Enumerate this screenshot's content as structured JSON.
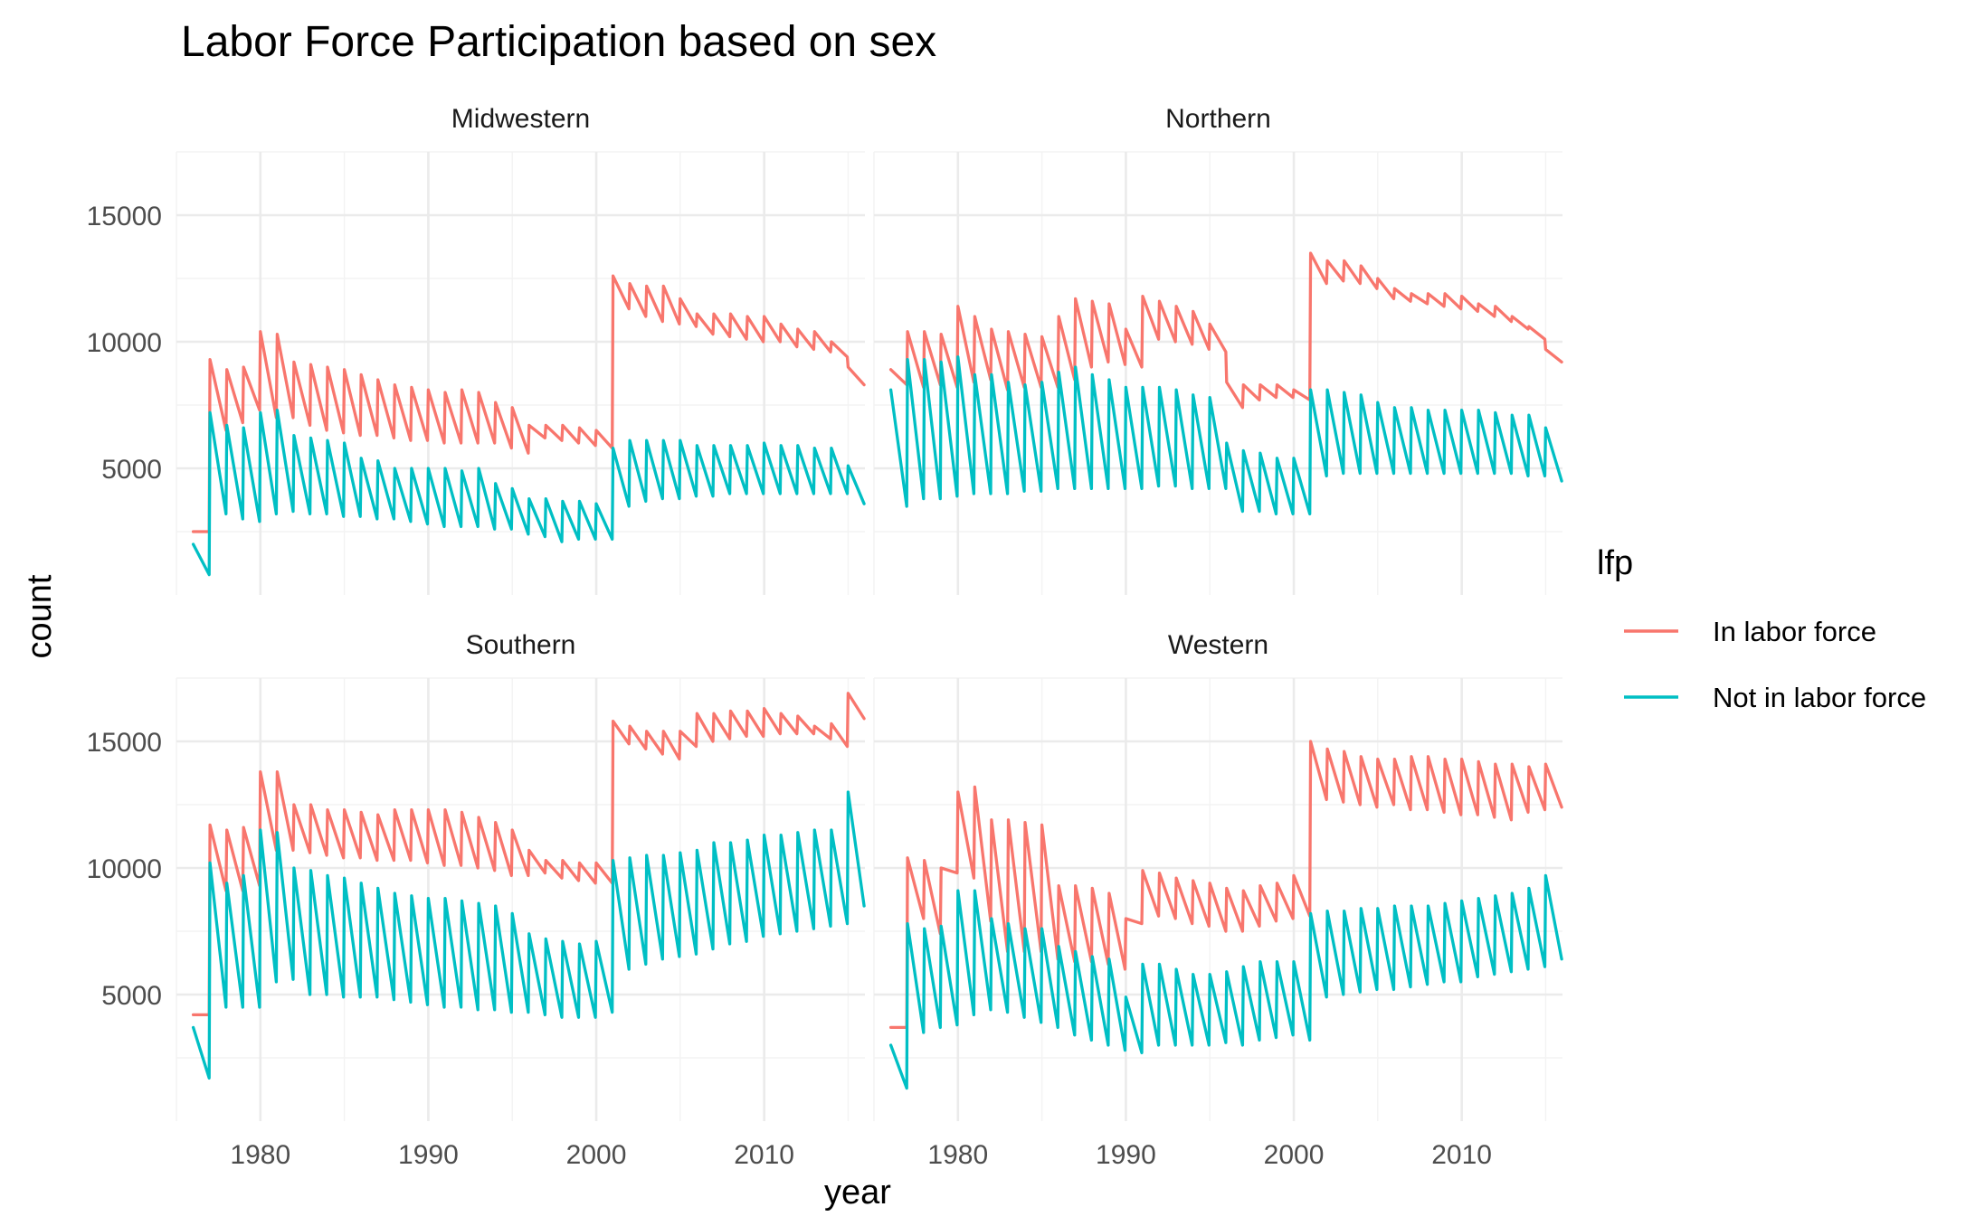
{
  "chart_data": {
    "type": "line",
    "title": "Labor Force Participation based on sex",
    "xlabel": "year",
    "ylabel": "count",
    "xlim": [
      1975,
      2016
    ],
    "ylim": [
      0,
      17500
    ],
    "x_ticks": [
      1980,
      1990,
      2000,
      2010
    ],
    "y_ticks": [
      5000,
      10000,
      15000
    ],
    "grid": true,
    "legend": {
      "title": "lfp",
      "position": "right",
      "entries": [
        {
          "label": "In labor force",
          "color": "#F8766D"
        },
        {
          "label": "Not in labor force",
          "color": "#00BFC4"
        }
      ]
    },
    "panels": [
      {
        "name": "Midwestern",
        "series": [
          {
            "name": "In labor force",
            "color": "#F8766D",
            "low": [
              2500,
              6500,
              6800,
              7300,
              7000,
              7000,
              6700,
              6500,
              6400,
              6300,
              6300,
              6200,
              6100,
              6100,
              6000,
              6000,
              6000,
              6000,
              5800,
              5600,
              6200,
              6100,
              6000,
              5900,
              5800,
              11300,
              11000,
              10800,
              10700,
              10600,
              10300,
              10200,
              10100,
              10000,
              10000,
              9800,
              9700,
              9600,
              9400,
              8300
            ],
            "high": [
              2500,
              9300,
              8900,
              9000,
              10400,
              10300,
              9200,
              9100,
              9000,
              8900,
              8700,
              8500,
              8300,
              8200,
              8100,
              8000,
              8100,
              8000,
              7600,
              7400,
              6700,
              6700,
              6700,
              6600,
              6500,
              12600,
              12300,
              12200,
              12200,
              11700,
              11100,
              11100,
              11100,
              11000,
              11000,
              10700,
              10500,
              10400,
              10000,
              9000
            ]
          },
          {
            "name": "Not in labor force",
            "color": "#00BFC4",
            "low": [
              800,
              3200,
              3000,
              2900,
              3200,
              3300,
              3200,
              3200,
              3100,
              3100,
              3000,
              3000,
              2900,
              2800,
              2700,
              2700,
              2700,
              2600,
              2600,
              2400,
              2300,
              2100,
              2200,
              2200,
              2200,
              3500,
              3700,
              3800,
              3800,
              3900,
              3900,
              4000,
              4000,
              4000,
              4000,
              4000,
              4000,
              4000,
              4000,
              3600
            ],
            "high": [
              2000,
              7200,
              6700,
              6600,
              7200,
              7300,
              6300,
              6200,
              6100,
              6000,
              5400,
              5300,
              5000,
              5000,
              5000,
              5000,
              4900,
              5000,
              4400,
              4200,
              3800,
              3800,
              3700,
              3700,
              3600,
              5800,
              6100,
              6100,
              6100,
              6100,
              5900,
              5900,
              5900,
              5900,
              6000,
              5900,
              5900,
              5800,
              5800,
              5100
            ]
          }
        ]
      },
      {
        "name": "Northern",
        "series": [
          {
            "name": "In labor force",
            "color": "#F8766D",
            "low": [
              8300,
              8200,
              8300,
              8200,
              8400,
              8500,
              8100,
              8200,
              8200,
              8200,
              8500,
              9000,
              9200,
              9100,
              9000,
              10100,
              10000,
              9900,
              9700,
              9600,
              7400,
              7700,
              7800,
              7800,
              7700,
              12300,
              12400,
              12300,
              12100,
              11700,
              11600,
              11500,
              11400,
              11300,
              11200,
              11000,
              10800,
              10500,
              10100,
              9200
            ],
            "high": [
              8900,
              10400,
              10400,
              10300,
              11400,
              11000,
              10500,
              10400,
              10300,
              10200,
              11000,
              11700,
              11600,
              11500,
              10500,
              11800,
              11600,
              11400,
              11200,
              10700,
              8400,
              8300,
              8300,
              8300,
              8100,
              13500,
              13200,
              13200,
              13000,
              12500,
              12100,
              11900,
              11900,
              11900,
              11800,
              11500,
              11400,
              11000,
              10600,
              9700
            ]
          },
          {
            "name": "Not in labor force",
            "color": "#00BFC4",
            "low": [
              3500,
              3800,
              3800,
              3900,
              4000,
              4000,
              4000,
              4100,
              4100,
              4200,
              4200,
              4200,
              4200,
              4200,
              4200,
              4300,
              4300,
              4200,
              4200,
              4200,
              3300,
              3300,
              3200,
              3200,
              3200,
              4700,
              4800,
              4800,
              4800,
              4800,
              4800,
              4800,
              4800,
              4800,
              4800,
              4800,
              4800,
              4700,
              4700,
              4500
            ],
            "high": [
              8100,
              9300,
              9300,
              9200,
              9400,
              8700,
              8700,
              8400,
              8300,
              8400,
              8800,
              9000,
              8700,
              8500,
              8200,
              8200,
              8200,
              8100,
              7900,
              7800,
              6000,
              5700,
              5600,
              5400,
              5400,
              8100,
              8100,
              8000,
              7900,
              7600,
              7400,
              7400,
              7300,
              7300,
              7300,
              7300,
              7200,
              7100,
              7100,
              6600
            ]
          }
        ]
      },
      {
        "name": "Southern",
        "series": [
          {
            "name": "In labor force",
            "color": "#F8766D",
            "low": [
              4200,
              9100,
              9100,
              9300,
              10700,
              10700,
              10600,
              10500,
              10400,
              10400,
              10300,
              10300,
              10300,
              10200,
              10100,
              10100,
              10000,
              9900,
              9700,
              9700,
              9800,
              9600,
              9500,
              9400,
              9400,
              14900,
              14700,
              14500,
              14300,
              14800,
              15000,
              15100,
              15200,
              15200,
              15300,
              15300,
              15300,
              15100,
              14800,
              15900
            ],
            "high": [
              4200,
              11700,
              11500,
              11600,
              13800,
              13800,
              12500,
              12500,
              12300,
              12300,
              12200,
              12100,
              12300,
              12300,
              12300,
              12300,
              12200,
              12000,
              11800,
              11500,
              10700,
              10300,
              10300,
              10200,
              10200,
              15800,
              15600,
              15400,
              15400,
              15400,
              16100,
              16100,
              16200,
              16200,
              16300,
              16100,
              16000,
              15600,
              15700,
              16900
            ]
          },
          {
            "name": "Not in labor force",
            "color": "#00BFC4",
            "low": [
              1700,
              4500,
              4500,
              4500,
              5500,
              5600,
              5000,
              5000,
              4900,
              4900,
              4900,
              4800,
              4700,
              4600,
              4500,
              4500,
              4400,
              4400,
              4300,
              4300,
              4200,
              4100,
              4100,
              4100,
              4300,
              6000,
              6200,
              6400,
              6500,
              6600,
              6800,
              7000,
              7100,
              7300,
              7400,
              7500,
              7600,
              7700,
              7800,
              8500
            ],
            "high": [
              3700,
              10200,
              9400,
              9700,
              11500,
              11400,
              10000,
              9900,
              9700,
              9600,
              9400,
              9200,
              9000,
              8900,
              8800,
              8800,
              8700,
              8600,
              8500,
              8200,
              7400,
              7200,
              7100,
              7000,
              7100,
              10300,
              10400,
              10500,
              10500,
              10600,
              10700,
              11000,
              11000,
              11100,
              11300,
              11300,
              11400,
              11500,
              11500,
              13000
            ]
          }
        ]
      },
      {
        "name": "Western",
        "series": [
          {
            "name": "In labor force",
            "color": "#F8766D",
            "low": [
              3700,
              8000,
              7400,
              9800,
              9600,
              7900,
              6700,
              6700,
              6700,
              6400,
              6300,
              6300,
              6200,
              6000,
              7800,
              8100,
              8000,
              7800,
              7700,
              7500,
              7500,
              7700,
              7900,
              8000,
              8100,
              12700,
              12600,
              12500,
              12400,
              12500,
              12300,
              12300,
              12200,
              12100,
              12100,
              12000,
              11900,
              12200,
              12300,
              12400
            ],
            "high": [
              3700,
              10400,
              10300,
              10000,
              13000,
              13200,
              11900,
              11900,
              11800,
              11700,
              9300,
              9300,
              9200,
              9000,
              8000,
              9900,
              9800,
              9600,
              9500,
              9400,
              9200,
              9100,
              9300,
              9400,
              9700,
              15000,
              14700,
              14600,
              14400,
              14300,
              14300,
              14400,
              14400,
              14300,
              14300,
              14200,
              14100,
              14100,
              14000,
              14100
            ]
          },
          {
            "name": "Not in labor force",
            "color": "#00BFC4",
            "low": [
              1300,
              3500,
              3700,
              3800,
              4200,
              4400,
              4300,
              4100,
              3900,
              3700,
              3400,
              3200,
              3000,
              2800,
              2700,
              3000,
              3000,
              3000,
              3000,
              3100,
              3000,
              3200,
              3300,
              3400,
              3200,
              4900,
              5000,
              5100,
              5200,
              5200,
              5300,
              5400,
              5500,
              5500,
              5700,
              5800,
              5900,
              6000,
              6100,
              6400
            ],
            "high": [
              3000,
              7800,
              7600,
              7700,
              9100,
              9100,
              8000,
              7800,
              7600,
              7600,
              6900,
              6700,
              6500,
              6400,
              4900,
              6200,
              6200,
              6000,
              5800,
              5800,
              5900,
              6100,
              6300,
              6300,
              6300,
              8200,
              8300,
              8300,
              8400,
              8400,
              8500,
              8500,
              8500,
              8600,
              8700,
              8800,
              8900,
              9000,
              9200,
              9700
            ]
          }
        ]
      }
    ]
  }
}
